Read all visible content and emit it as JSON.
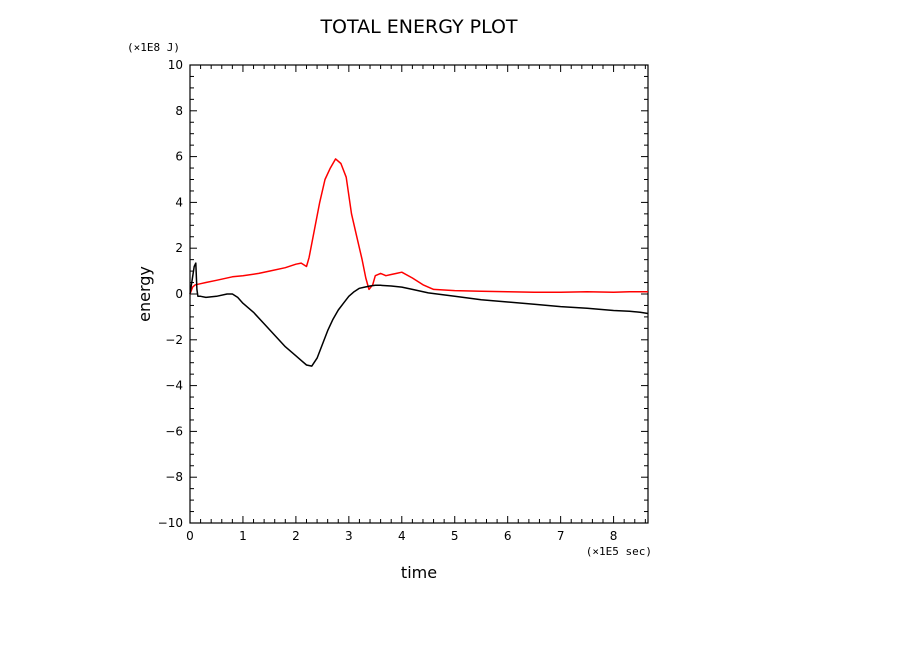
{
  "chart_data": {
    "type": "line",
    "title": "TOTAL ENERGY PLOT",
    "xlabel": "time",
    "ylabel": "energy",
    "x_unit": "(×1E5 sec)",
    "y_unit": "(×1E8 J)",
    "xlim": [
      0,
      8.65
    ],
    "ylim": [
      -10,
      10
    ],
    "x_ticks": [
      "0",
      "1",
      "2",
      "3",
      "4",
      "5",
      "6",
      "7",
      "8"
    ],
    "y_ticks": [
      "10",
      "8",
      "6",
      "4",
      "2",
      "0",
      "−2",
      "−4",
      "−6",
      "−8",
      "−10"
    ],
    "grid": false,
    "series": [
      {
        "color": "#ff0000",
        "points": [
          [
            0,
            0
          ],
          [
            0.05,
            0.3
          ],
          [
            0.1,
            0.4
          ],
          [
            0.2,
            0.45
          ],
          [
            0.3,
            0.5
          ],
          [
            0.5,
            0.6
          ],
          [
            0.8,
            0.75
          ],
          [
            1.0,
            0.8
          ],
          [
            1.3,
            0.9
          ],
          [
            1.5,
            1.0
          ],
          [
            1.8,
            1.15
          ],
          [
            2.0,
            1.3
          ],
          [
            2.1,
            1.35
          ],
          [
            2.2,
            1.2
          ],
          [
            2.25,
            1.6
          ],
          [
            2.35,
            2.8
          ],
          [
            2.45,
            4.0
          ],
          [
            2.55,
            5.0
          ],
          [
            2.65,
            5.5
          ],
          [
            2.75,
            5.9
          ],
          [
            2.85,
            5.7
          ],
          [
            2.95,
            5.1
          ],
          [
            3.05,
            3.5
          ],
          [
            3.15,
            2.5
          ],
          [
            3.25,
            1.5
          ],
          [
            3.32,
            0.7
          ],
          [
            3.38,
            0.2
          ],
          [
            3.45,
            0.4
          ],
          [
            3.5,
            0.8
          ],
          [
            3.6,
            0.9
          ],
          [
            3.7,
            0.8
          ],
          [
            3.8,
            0.85
          ],
          [
            3.9,
            0.9
          ],
          [
            4.0,
            0.95
          ],
          [
            4.2,
            0.7
          ],
          [
            4.4,
            0.4
          ],
          [
            4.6,
            0.2
          ],
          [
            5.0,
            0.15
          ],
          [
            5.5,
            0.12
          ],
          [
            6.0,
            0.1
          ],
          [
            6.5,
            0.08
          ],
          [
            7.0,
            0.08
          ],
          [
            7.5,
            0.1
          ],
          [
            8.0,
            0.08
          ],
          [
            8.3,
            0.1
          ],
          [
            8.65,
            0.1
          ]
        ]
      },
      {
        "color": "#000000",
        "points": [
          [
            0,
            0
          ],
          [
            0.04,
            0.6
          ],
          [
            0.08,
            1.2
          ],
          [
            0.11,
            1.35
          ],
          [
            0.13,
            0.2
          ],
          [
            0.15,
            -0.1
          ],
          [
            0.2,
            -0.1
          ],
          [
            0.3,
            -0.15
          ],
          [
            0.5,
            -0.1
          ],
          [
            0.7,
            0.0
          ],
          [
            0.8,
            0.0
          ],
          [
            0.9,
            -0.15
          ],
          [
            1.0,
            -0.4
          ],
          [
            1.2,
            -0.8
          ],
          [
            1.4,
            -1.3
          ],
          [
            1.6,
            -1.8
          ],
          [
            1.8,
            -2.3
          ],
          [
            2.0,
            -2.7
          ],
          [
            2.1,
            -2.9
          ],
          [
            2.2,
            -3.1
          ],
          [
            2.3,
            -3.15
          ],
          [
            2.4,
            -2.8
          ],
          [
            2.5,
            -2.2
          ],
          [
            2.6,
            -1.6
          ],
          [
            2.7,
            -1.1
          ],
          [
            2.8,
            -0.7
          ],
          [
            2.9,
            -0.4
          ],
          [
            3.0,
            -0.1
          ],
          [
            3.1,
            0.1
          ],
          [
            3.2,
            0.25
          ],
          [
            3.3,
            0.3
          ],
          [
            3.4,
            0.35
          ],
          [
            3.5,
            0.38
          ],
          [
            3.6,
            0.38
          ],
          [
            3.8,
            0.35
          ],
          [
            4.0,
            0.3
          ],
          [
            4.2,
            0.2
          ],
          [
            4.5,
            0.05
          ],
          [
            5.0,
            -0.1
          ],
          [
            5.5,
            -0.25
          ],
          [
            6.0,
            -0.35
          ],
          [
            6.5,
            -0.45
          ],
          [
            7.0,
            -0.55
          ],
          [
            7.5,
            -0.62
          ],
          [
            8.0,
            -0.72
          ],
          [
            8.3,
            -0.75
          ],
          [
            8.5,
            -0.8
          ],
          [
            8.65,
            -0.85
          ]
        ]
      }
    ]
  }
}
